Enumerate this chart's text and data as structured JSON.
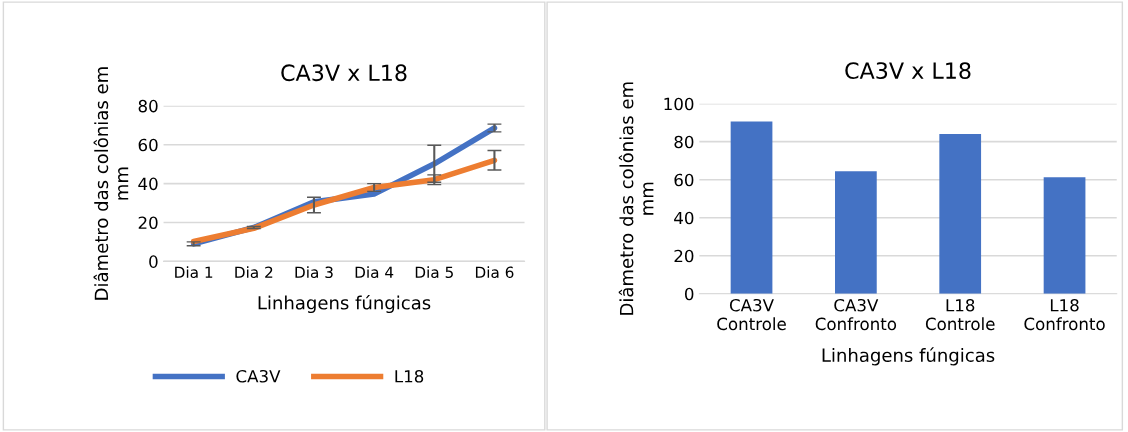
{
  "chart_data": [
    {
      "type": "line",
      "title": "CA3V x L18",
      "xlabel": "Linhagens fúngicas",
      "ylabel": "Diâmetro das colônias em\nmm",
      "categories": [
        "Dia 1",
        "Dia 2",
        "Dia 3",
        "Dia 4",
        "Dia 5",
        "Dia 6"
      ],
      "series": [
        {
          "name": "CA3V",
          "color": "#4472c4",
          "values": [
            9,
            17.4,
            30.6,
            34.6,
            50.2,
            68.6
          ],
          "errors": [
            1,
            0.5,
            null,
            null,
            9.5,
            2
          ]
        },
        {
          "name": "L18",
          "color": "#ed7d31",
          "values": [
            10.2,
            17,
            29,
            38,
            42,
            52
          ],
          "errors": [
            null,
            null,
            4,
            2,
            2.5,
            5
          ]
        }
      ],
      "ylim": [
        0,
        80
      ],
      "yticks": [
        0,
        20,
        40,
        60,
        80
      ],
      "grid": "y",
      "legend": "bottom",
      "marker": "none",
      "line_style": "solid"
    },
    {
      "type": "bar",
      "title": "CA3V x L18",
      "xlabel": "Linhagens fúngicas",
      "ylabel": "Diâmetro das colônias em\nmm",
      "categories": [
        "CA3V\nControle",
        "CA3V\nConfronto",
        "L18\nControle",
        "L18\nConfronto"
      ],
      "values": [
        90.6,
        64.5,
        84,
        61.3
      ],
      "color": "#4472c4",
      "ylim": [
        0,
        100
      ],
      "yticks": [
        0,
        20,
        40,
        60,
        80,
        100
      ],
      "grid": "y"
    }
  ]
}
